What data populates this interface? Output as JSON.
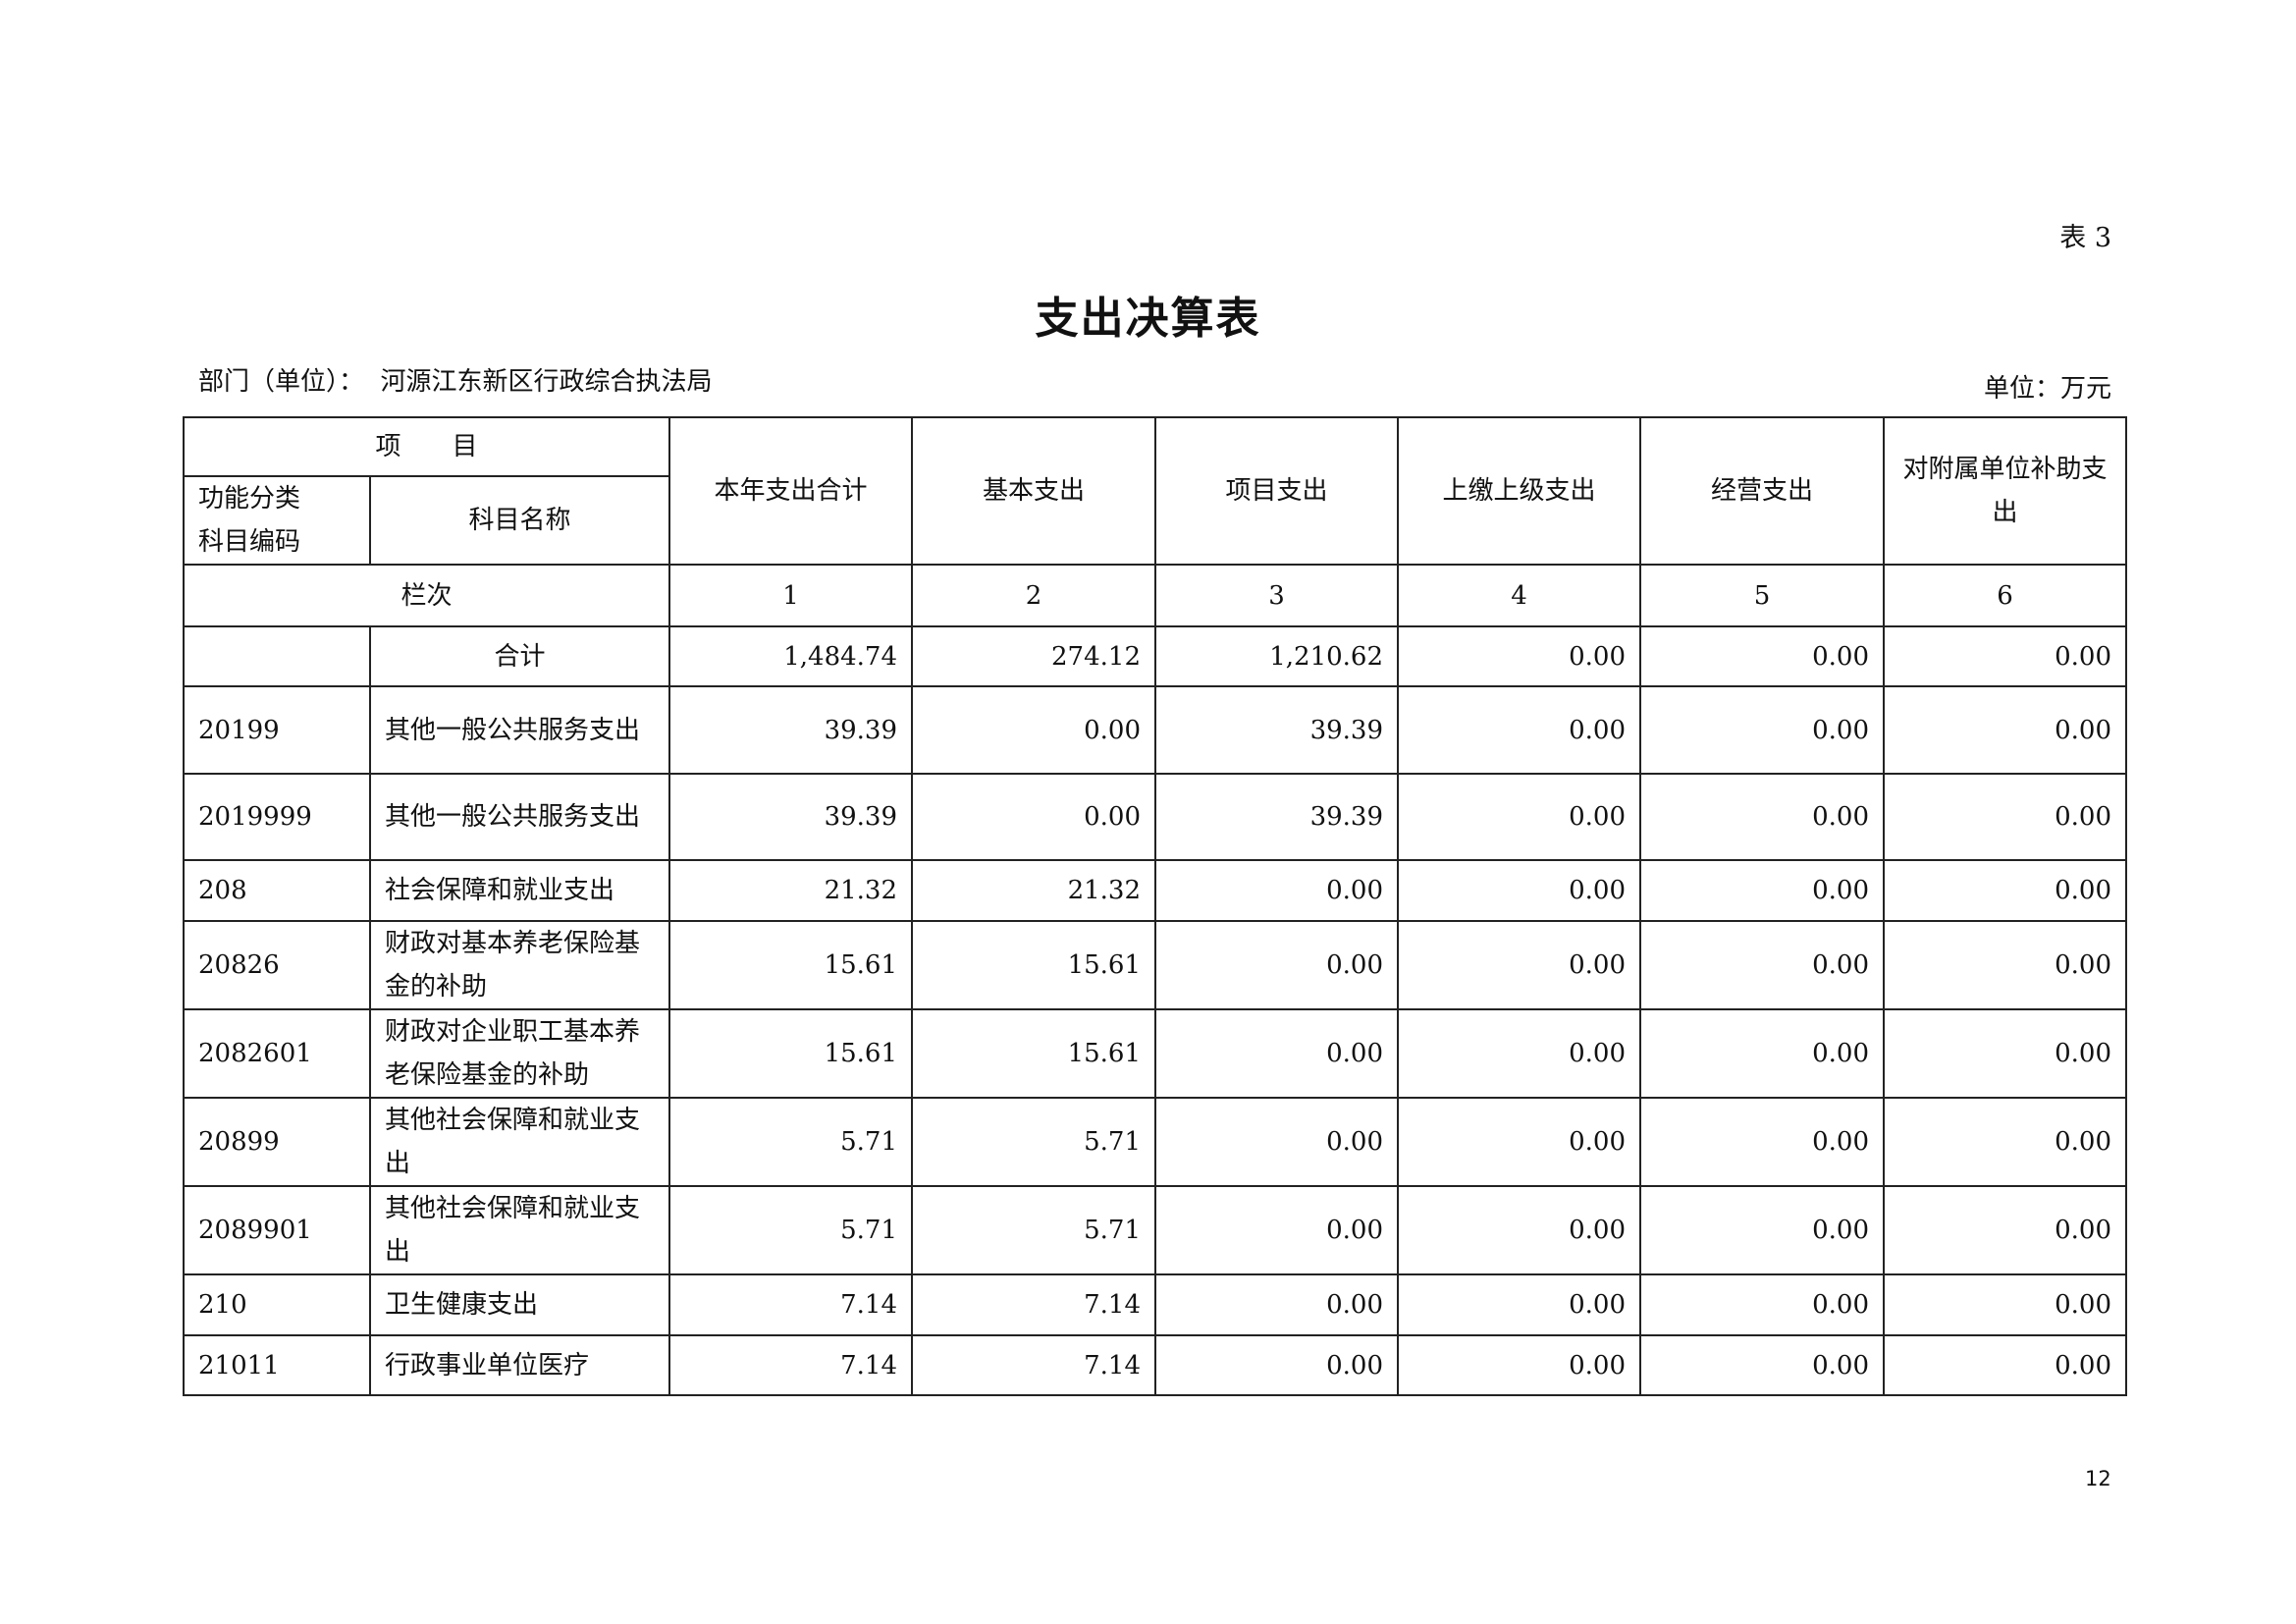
{
  "table_no": "表 3",
  "title": "支出决算表",
  "department": "部门（单位）：  河源江东新区行政综合执法局",
  "unit": "单位：万元",
  "page_number": "12",
  "header": {
    "item": "项　　目",
    "code": "功能分类\n科目编码",
    "name": "科目名称",
    "columns": [
      "本年支出合计",
      "基本支出",
      "项目支出",
      "上缴上级支出",
      "经营支出",
      "对附属单位补助支出"
    ],
    "row_label": "栏次",
    "column_numbers": [
      "1",
      "2",
      "3",
      "4",
      "5",
      "6"
    ]
  },
  "total": {
    "label": "合计",
    "values": [
      "1,484.74",
      "274.12",
      "1,210.62",
      "0.00",
      "0.00",
      "0.00"
    ]
  },
  "rows": [
    {
      "code": "20199",
      "name": "其他一般公共服务支出",
      "values": [
        "39.39",
        "0.00",
        "39.39",
        "0.00",
        "0.00",
        "0.00"
      ]
    },
    {
      "code": "2019999",
      "name": "其他一般公共服务支出",
      "values": [
        "39.39",
        "0.00",
        "39.39",
        "0.00",
        "0.00",
        "0.00"
      ]
    },
    {
      "code": "208",
      "name": "社会保障和就业支出",
      "values": [
        "21.32",
        "21.32",
        "0.00",
        "0.00",
        "0.00",
        "0.00"
      ]
    },
    {
      "code": "20826",
      "name": "财政对基本养老保险基金的补助",
      "values": [
        "15.61",
        "15.61",
        "0.00",
        "0.00",
        "0.00",
        "0.00"
      ]
    },
    {
      "code": "2082601",
      "name": "财政对企业职工基本养老保险基金的补助",
      "values": [
        "15.61",
        "15.61",
        "0.00",
        "0.00",
        "0.00",
        "0.00"
      ]
    },
    {
      "code": "20899",
      "name": "其他社会保障和就业支出",
      "values": [
        "5.71",
        "5.71",
        "0.00",
        "0.00",
        "0.00",
        "0.00"
      ]
    },
    {
      "code": "2089901",
      "name": "其他社会保障和就业支出",
      "values": [
        "5.71",
        "5.71",
        "0.00",
        "0.00",
        "0.00",
        "0.00"
      ]
    },
    {
      "code": "210",
      "name": "卫生健康支出",
      "values": [
        "7.14",
        "7.14",
        "0.00",
        "0.00",
        "0.00",
        "0.00"
      ]
    },
    {
      "code": "21011",
      "name": "行政事业单位医疗",
      "values": [
        "7.14",
        "7.14",
        "0.00",
        "0.00",
        "0.00",
        "0.00"
      ]
    }
  ]
}
